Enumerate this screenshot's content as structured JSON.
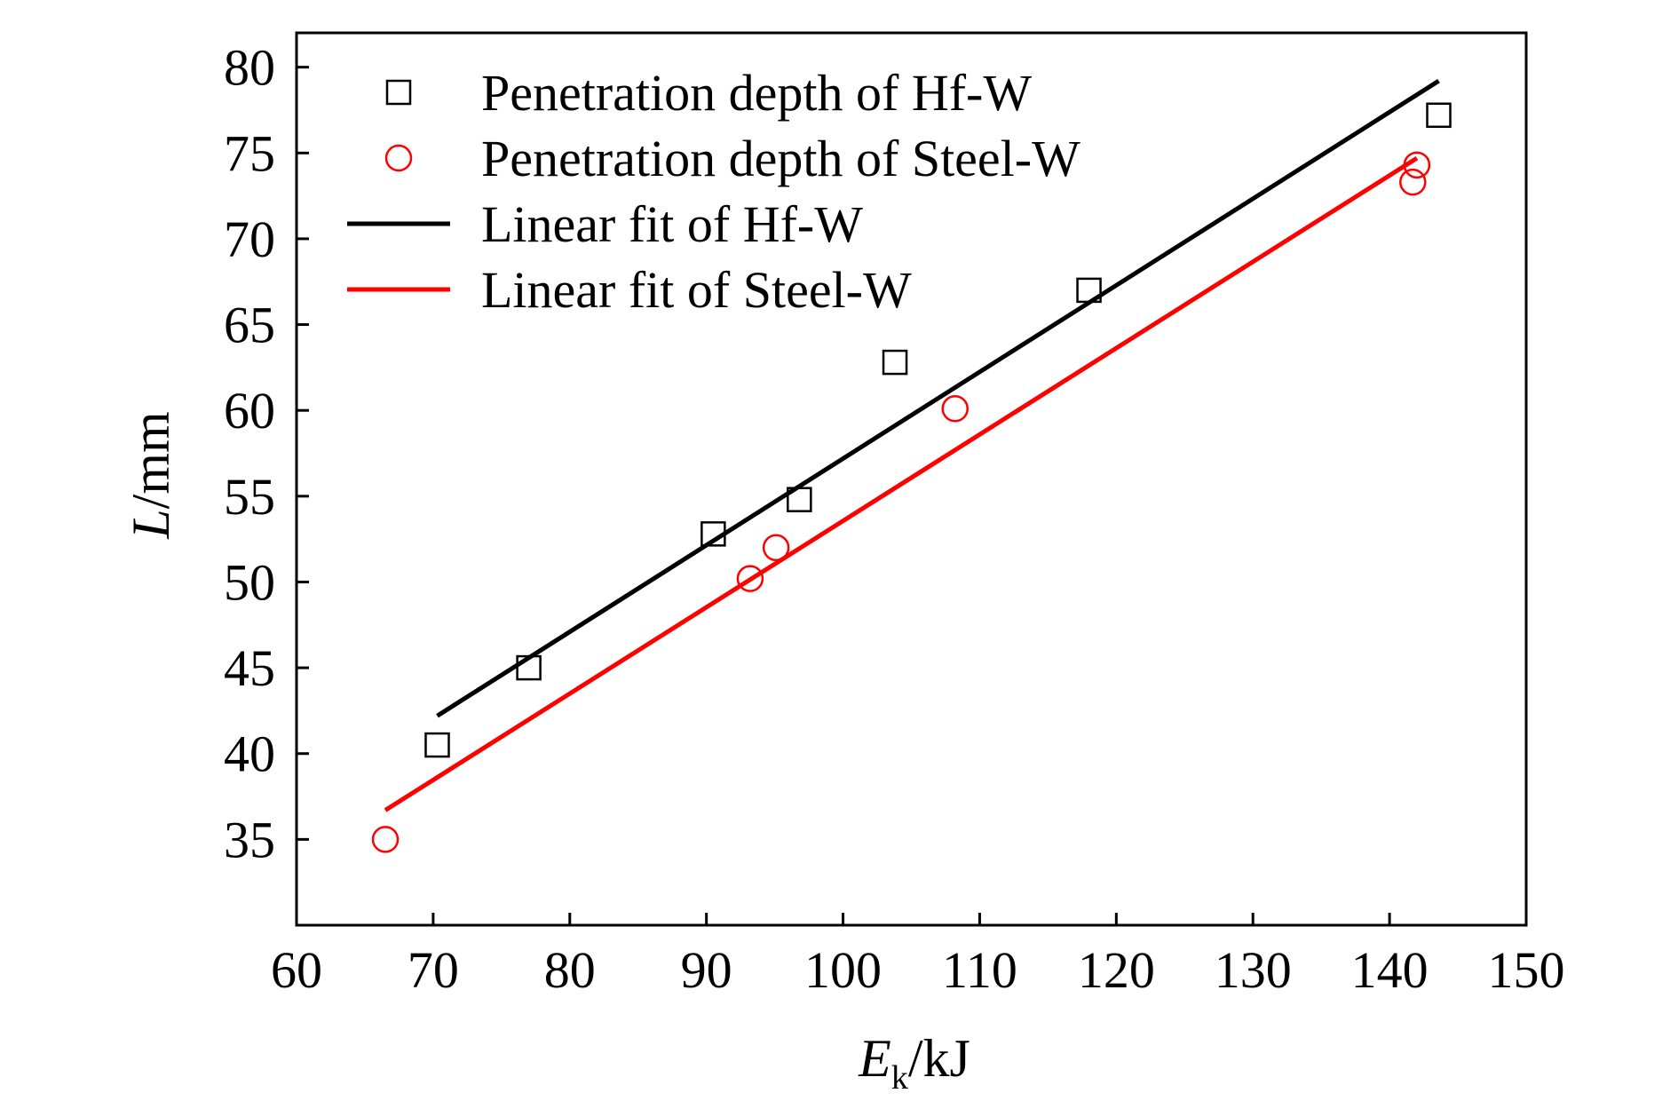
{
  "chart_data": {
    "type": "scatter",
    "xlabel": {
      "main": "E",
      "sub": "k",
      "unit": "/kJ"
    },
    "ylabel": {
      "main": "L",
      "unit": "/mm"
    },
    "xlim": [
      60,
      150
    ],
    "ylim": [
      30,
      82
    ],
    "xticks": [
      60,
      70,
      80,
      90,
      100,
      110,
      120,
      130,
      140,
      150
    ],
    "yticks": [
      35,
      40,
      45,
      50,
      55,
      60,
      65,
      70,
      75,
      80
    ],
    "grid": false,
    "legend_position": "top-left",
    "series": [
      {
        "name": "Penetration depth of Hf-W",
        "kind": "markers",
        "marker": "square",
        "color": "#000000",
        "points": [
          [
            70.3,
            40.5
          ],
          [
            77.0,
            45.0
          ],
          [
            90.5,
            52.8
          ],
          [
            96.8,
            54.8
          ],
          [
            103.8,
            62.8
          ],
          [
            118.0,
            67.0
          ],
          [
            143.6,
            77.2
          ]
        ]
      },
      {
        "name": "Penetration depth of Steel-W",
        "kind": "markers",
        "marker": "circle",
        "color": "#ff0000",
        "points": [
          [
            66.5,
            35.0
          ],
          [
            93.2,
            50.2
          ],
          [
            95.1,
            52.0
          ],
          [
            108.2,
            60.1
          ],
          [
            141.7,
            73.3
          ],
          [
            142.0,
            74.3
          ]
        ]
      },
      {
        "name": "Linear fit of Hf-W",
        "kind": "line",
        "color": "#000000",
        "points": [
          [
            70.3,
            42.2
          ],
          [
            143.6,
            79.2
          ]
        ]
      },
      {
        "name": "Linear fit of Steel-W",
        "kind": "line",
        "color": "#ff0000",
        "points": [
          [
            66.5,
            36.7
          ],
          [
            142.0,
            74.7
          ]
        ]
      }
    ]
  }
}
